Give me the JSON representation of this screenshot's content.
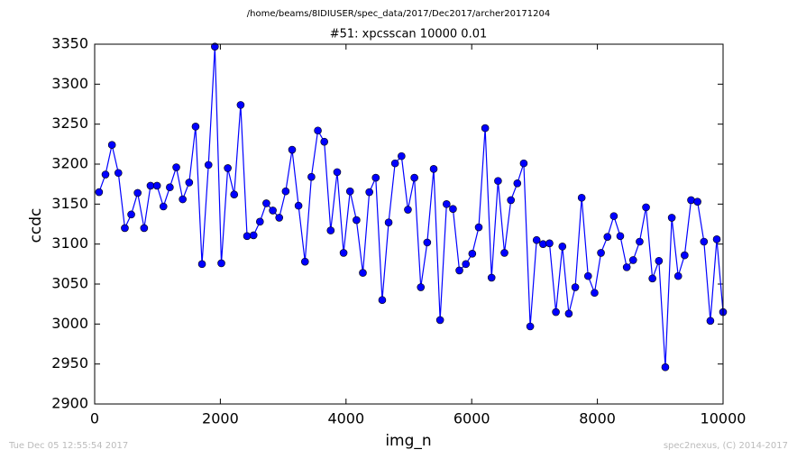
{
  "chart_data": {
    "type": "line",
    "suptitle": "/home/beams/8IDIUSER/spec_data/2017/Dec2017/archer20171204",
    "title": "#51: xpcsscan 10000 0.01",
    "x_label": "img_n",
    "y_label": "ccdc",
    "color": "#0000ff",
    "xlim": [
      0,
      10000
    ],
    "xticks": [
      0,
      2000,
      4000,
      6000,
      8000,
      10000
    ],
    "ylim": [
      2900,
      3350
    ],
    "yticks": [
      2900,
      2950,
      3000,
      3050,
      3100,
      3150,
      3200,
      3250,
      3300,
      3350
    ],
    "x": [
      70,
      172,
      275,
      377,
      480,
      582,
      684,
      787,
      889,
      992,
      1094,
      1196,
      1299,
      1401,
      1504,
      1606,
      1708,
      1811,
      1913,
      2016,
      2118,
      2220,
      2323,
      2425,
      2528,
      2630,
      2732,
      2835,
      2937,
      3040,
      3142,
      3244,
      3347,
      3449,
      3552,
      3654,
      3756,
      3859,
      3961,
      4064,
      4166,
      4268,
      4371,
      4473,
      4576,
      4678,
      4780,
      4883,
      4985,
      5088,
      5190,
      5292,
      5395,
      5497,
      5600,
      5702,
      5804,
      5907,
      6009,
      6112,
      6214,
      6316,
      6419,
      6521,
      6624,
      6726,
      6828,
      6931,
      7033,
      7136,
      7238,
      7340,
      7443,
      7545,
      7648,
      7750,
      7852,
      7955,
      8057,
      8160,
      8262,
      8364,
      8467,
      8569,
      8672,
      8774,
      8876,
      8979,
      9081,
      9184,
      9286,
      9388,
      9491,
      9593,
      9696,
      9798,
      9900,
      10000
    ],
    "values": [
      3165,
      3187,
      3224,
      3189,
      3120,
      3137,
      3164,
      3120,
      3173,
      3173,
      3147,
      3171,
      3196,
      3156,
      3177,
      3247,
      3075,
      3199,
      3347,
      3076,
      3195,
      3162,
      3274,
      3110,
      3111,
      3128,
      3151,
      3142,
      3133,
      3166,
      3218,
      3148,
      3078,
      3184,
      3242,
      3228,
      3117,
      3190,
      3089,
      3166,
      3130,
      3064,
      3165,
      3183,
      3030,
      3127,
      3201,
      3210,
      3143,
      3183,
      3046,
      3102,
      3194,
      3005,
      3150,
      3144,
      3067,
      3075,
      3088,
      3121,
      3245,
      3058,
      3179,
      3089,
      3155,
      3176,
      3201,
      2997,
      3105,
      3100,
      3101,
      3015,
      3097,
      3013,
      3046,
      3158,
      3060,
      3039,
      3089,
      3109,
      3135,
      3110,
      3071,
      3080,
      3103,
      3146,
      3057,
      3079,
      2946,
      3133,
      3060,
      3086,
      3155,
      3153,
      3103,
      3004,
      3106,
      3015
    ]
  },
  "footer": {
    "left": "Tue Dec 05 12:55:54 2017",
    "right": "spec2nexus, (C) 2014-2017"
  }
}
